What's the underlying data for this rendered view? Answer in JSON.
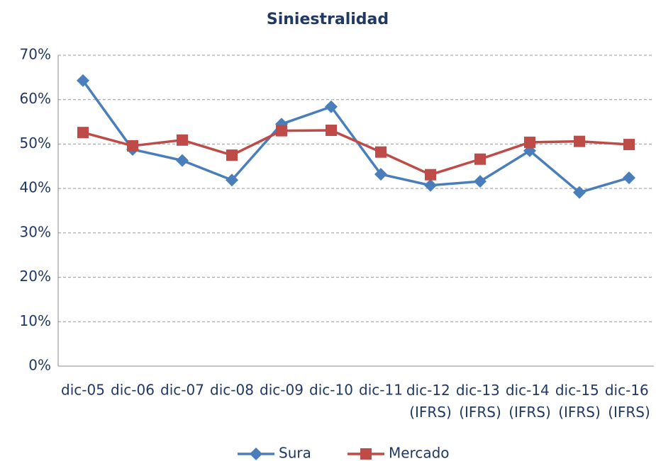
{
  "chart_data": {
    "type": "line",
    "title": "Siniestralidad",
    "categories": [
      "dic-05",
      "dic-06",
      "dic-07",
      "dic-08",
      "dic-09",
      "dic-10",
      "dic-11",
      "dic-12 (IFRS)",
      "dic-13 (IFRS)",
      "dic-14 (IFRS)",
      "dic-15 (IFRS)",
      "dic-16 (IFRS)"
    ],
    "series": [
      {
        "name": "Sura",
        "color": "#4a7ebb",
        "marker": "diamond",
        "values": [
          64.3,
          48.8,
          46.3,
          41.9,
          54.5,
          58.4,
          43.2,
          40.7,
          41.6,
          48.5,
          39.1,
          42.4
        ]
      },
      {
        "name": "Mercado",
        "color": "#be4b48",
        "marker": "square",
        "values": [
          52.6,
          49.6,
          50.9,
          47.5,
          53.0,
          53.1,
          48.2,
          43.1,
          46.6,
          50.4,
          50.6,
          49.9
        ]
      }
    ],
    "ylim": [
      0,
      70
    ],
    "yticks": [
      {
        "value": 0,
        "label": "0%"
      },
      {
        "value": 10,
        "label": "10%"
      },
      {
        "value": 20,
        "label": "20%"
      },
      {
        "value": 30,
        "label": "30%"
      },
      {
        "value": 40,
        "label": "40%"
      },
      {
        "value": 50,
        "label": "50%"
      },
      {
        "value": 60,
        "label": "60%"
      },
      {
        "value": 70,
        "label": "70%"
      }
    ],
    "grid": true,
    "legend": "bottom"
  }
}
